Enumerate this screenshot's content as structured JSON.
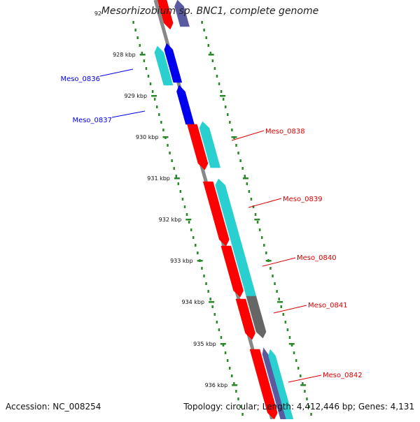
{
  "title": "Mesorhizobium sp. BNC1, complete genome",
  "top_tick_partial": "92",
  "accession_text": "Accession: NC_008254",
  "summary_text": "Topology: circular; Length: 4,412,446 bp; Genes: 4,131",
  "ticks": [
    "928 kbp",
    "929 kbp",
    "930 kbp",
    "931 kbp",
    "932 kbp",
    "933 kbp",
    "934 kbp",
    "935 kbp",
    "936 kbp"
  ],
  "colors": {
    "forward_strand_label": "#0000ee",
    "reverse_strand_label": "#dd0000",
    "cds_red": "#ff0000",
    "cds_blue": "#0000ee",
    "cds_cyan": "#2ad0d0",
    "cds_gray": "#666666",
    "cds_slate": "#5a5aa0",
    "backbone": "#888888",
    "tick_green": "#2a8a2a"
  },
  "gene_labels": [
    {
      "name": "Meso_0836",
      "strand": "forward"
    },
    {
      "name": "Meso_0837",
      "strand": "forward"
    },
    {
      "name": "Meso_0838",
      "strand": "reverse"
    },
    {
      "name": "Meso_0839",
      "strand": "reverse"
    },
    {
      "name": "Meso_0840",
      "strand": "reverse"
    },
    {
      "name": "Meso_0841",
      "strand": "reverse"
    },
    {
      "name": "Meso_0842",
      "strand": "reverse"
    }
  ]
}
